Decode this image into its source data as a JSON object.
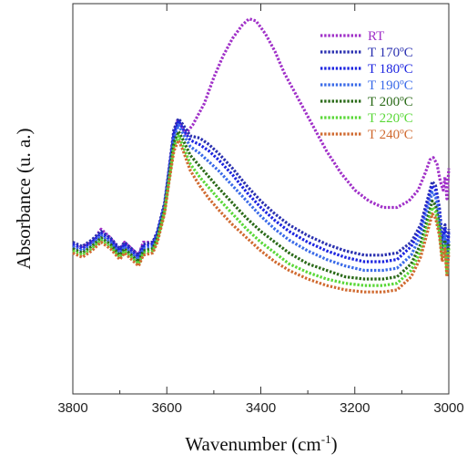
{
  "chart_data": {
    "type": "line",
    "title": "",
    "xlabel": "Wavenumber (cm",
    "xlabel_sup": "-1",
    "xlabel_close": ")",
    "ylabel": "Absorbance (u. a.)",
    "xlim": [
      3800,
      3000
    ],
    "x_reversed": true,
    "y_tick_labels": false,
    "legend_position": "top-right",
    "grid": false,
    "x_ticks": [
      3800,
      3600,
      3400,
      3200,
      3000
    ],
    "x_tick_labels": [
      "3800",
      "3600",
      "3400",
      "3200",
      "3000"
    ],
    "series": [
      {
        "name": "RT",
        "color": "#a030c8",
        "points": [
          [
            3800,
            0.54
          ],
          [
            3780,
            0.54
          ],
          [
            3760,
            0.55
          ],
          [
            3740,
            0.58
          ],
          [
            3720,
            0.56
          ],
          [
            3700,
            0.53
          ],
          [
            3690,
            0.55
          ],
          [
            3670,
            0.53
          ],
          [
            3660,
            0.52
          ],
          [
            3650,
            0.55
          ],
          [
            3630,
            0.55
          ],
          [
            3620,
            0.57
          ],
          [
            3605,
            0.63
          ],
          [
            3595,
            0.72
          ],
          [
            3585,
            0.8
          ],
          [
            3578,
            0.83
          ],
          [
            3570,
            0.82
          ],
          [
            3560,
            0.8
          ],
          [
            3545,
            0.82
          ],
          [
            3520,
            0.87
          ],
          [
            3500,
            0.93
          ],
          [
            3480,
            0.98
          ],
          [
            3460,
            1.02
          ],
          [
            3440,
            1.05
          ],
          [
            3425,
            1.065
          ],
          [
            3410,
            1.06
          ],
          [
            3390,
            1.03
          ],
          [
            3370,
            0.99
          ],
          [
            3350,
            0.94
          ],
          [
            3320,
            0.88
          ],
          [
            3290,
            0.82
          ],
          [
            3260,
            0.76
          ],
          [
            3230,
            0.71
          ],
          [
            3200,
            0.67
          ],
          [
            3170,
            0.645
          ],
          [
            3140,
            0.63
          ],
          [
            3110,
            0.63
          ],
          [
            3085,
            0.645
          ],
          [
            3065,
            0.67
          ],
          [
            3050,
            0.71
          ],
          [
            3040,
            0.74
          ],
          [
            3033,
            0.745
          ],
          [
            3025,
            0.73
          ],
          [
            3018,
            0.69
          ],
          [
            3012,
            0.67
          ],
          [
            3008,
            0.7
          ],
          [
            3004,
            0.65
          ],
          [
            3000,
            0.72
          ]
        ]
      },
      {
        "name": "T 170ºC",
        "color": "#2a30b0",
        "points": [
          [
            3800,
            0.55
          ],
          [
            3780,
            0.54
          ],
          [
            3760,
            0.555
          ],
          [
            3740,
            0.575
          ],
          [
            3720,
            0.56
          ],
          [
            3700,
            0.535
          ],
          [
            3690,
            0.55
          ],
          [
            3670,
            0.53
          ],
          [
            3660,
            0.52
          ],
          [
            3650,
            0.545
          ],
          [
            3630,
            0.55
          ],
          [
            3620,
            0.575
          ],
          [
            3605,
            0.64
          ],
          [
            3595,
            0.72
          ],
          [
            3585,
            0.81
          ],
          [
            3575,
            0.835
          ],
          [
            3565,
            0.82
          ],
          [
            3550,
            0.795
          ],
          [
            3530,
            0.79
          ],
          [
            3510,
            0.775
          ],
          [
            3490,
            0.755
          ],
          [
            3460,
            0.72
          ],
          [
            3430,
            0.68
          ],
          [
            3400,
            0.645
          ],
          [
            3370,
            0.615
          ],
          [
            3340,
            0.59
          ],
          [
            3300,
            0.565
          ],
          [
            3260,
            0.545
          ],
          [
            3220,
            0.53
          ],
          [
            3180,
            0.52
          ],
          [
            3140,
            0.52
          ],
          [
            3110,
            0.525
          ],
          [
            3080,
            0.55
          ],
          [
            3060,
            0.59
          ],
          [
            3045,
            0.65
          ],
          [
            3035,
            0.69
          ],
          [
            3028,
            0.68
          ],
          [
            3020,
            0.63
          ],
          [
            3014,
            0.56
          ],
          [
            3008,
            0.59
          ],
          [
            3004,
            0.52
          ],
          [
            3000,
            0.58
          ]
        ]
      },
      {
        "name": "T 180ºC",
        "color": "#1c24e0",
        "points": [
          [
            3800,
            0.545
          ],
          [
            3780,
            0.535
          ],
          [
            3760,
            0.55
          ],
          [
            3740,
            0.57
          ],
          [
            3720,
            0.555
          ],
          [
            3700,
            0.53
          ],
          [
            3690,
            0.545
          ],
          [
            3670,
            0.525
          ],
          [
            3660,
            0.515
          ],
          [
            3650,
            0.54
          ],
          [
            3630,
            0.545
          ],
          [
            3620,
            0.57
          ],
          [
            3605,
            0.635
          ],
          [
            3595,
            0.715
          ],
          [
            3585,
            0.8
          ],
          [
            3575,
            0.83
          ],
          [
            3565,
            0.81
          ],
          [
            3550,
            0.785
          ],
          [
            3530,
            0.775
          ],
          [
            3510,
            0.76
          ],
          [
            3490,
            0.74
          ],
          [
            3460,
            0.705
          ],
          [
            3430,
            0.665
          ],
          [
            3400,
            0.63
          ],
          [
            3370,
            0.6
          ],
          [
            3340,
            0.575
          ],
          [
            3300,
            0.55
          ],
          [
            3260,
            0.53
          ],
          [
            3220,
            0.515
          ],
          [
            3180,
            0.505
          ],
          [
            3140,
            0.505
          ],
          [
            3110,
            0.51
          ],
          [
            3080,
            0.54
          ],
          [
            3060,
            0.58
          ],
          [
            3045,
            0.64
          ],
          [
            3035,
            0.68
          ],
          [
            3028,
            0.67
          ],
          [
            3020,
            0.62
          ],
          [
            3014,
            0.55
          ],
          [
            3008,
            0.58
          ],
          [
            3004,
            0.51
          ],
          [
            3000,
            0.57
          ]
        ]
      },
      {
        "name": "T 190ºC",
        "color": "#3a6ae8",
        "points": [
          [
            3800,
            0.54
          ],
          [
            3780,
            0.53
          ],
          [
            3760,
            0.545
          ],
          [
            3740,
            0.565
          ],
          [
            3720,
            0.55
          ],
          [
            3700,
            0.525
          ],
          [
            3690,
            0.54
          ],
          [
            3670,
            0.52
          ],
          [
            3660,
            0.51
          ],
          [
            3650,
            0.535
          ],
          [
            3630,
            0.54
          ],
          [
            3620,
            0.565
          ],
          [
            3605,
            0.63
          ],
          [
            3595,
            0.71
          ],
          [
            3585,
            0.79
          ],
          [
            3575,
            0.82
          ],
          [
            3565,
            0.8
          ],
          [
            3550,
            0.77
          ],
          [
            3530,
            0.755
          ],
          [
            3510,
            0.735
          ],
          [
            3490,
            0.715
          ],
          [
            3460,
            0.68
          ],
          [
            3430,
            0.645
          ],
          [
            3400,
            0.61
          ],
          [
            3370,
            0.58
          ],
          [
            3340,
            0.555
          ],
          [
            3300,
            0.53
          ],
          [
            3260,
            0.51
          ],
          [
            3220,
            0.495
          ],
          [
            3180,
            0.485
          ],
          [
            3140,
            0.485
          ],
          [
            3110,
            0.49
          ],
          [
            3080,
            0.52
          ],
          [
            3060,
            0.565
          ],
          [
            3045,
            0.625
          ],
          [
            3035,
            0.665
          ],
          [
            3028,
            0.655
          ],
          [
            3020,
            0.605
          ],
          [
            3014,
            0.535
          ],
          [
            3008,
            0.565
          ],
          [
            3004,
            0.495
          ],
          [
            3000,
            0.555
          ]
        ]
      },
      {
        "name": "T 200ºC",
        "color": "#2a6a18",
        "points": [
          [
            3800,
            0.535
          ],
          [
            3780,
            0.525
          ],
          [
            3760,
            0.54
          ],
          [
            3740,
            0.56
          ],
          [
            3720,
            0.545
          ],
          [
            3700,
            0.52
          ],
          [
            3690,
            0.535
          ],
          [
            3670,
            0.515
          ],
          [
            3660,
            0.505
          ],
          [
            3650,
            0.53
          ],
          [
            3630,
            0.535
          ],
          [
            3620,
            0.56
          ],
          [
            3605,
            0.625
          ],
          [
            3595,
            0.7
          ],
          [
            3585,
            0.78
          ],
          [
            3575,
            0.805
          ],
          [
            3565,
            0.785
          ],
          [
            3550,
            0.75
          ],
          [
            3530,
            0.725
          ],
          [
            3510,
            0.7
          ],
          [
            3490,
            0.675
          ],
          [
            3460,
            0.64
          ],
          [
            3430,
            0.605
          ],
          [
            3400,
            0.575
          ],
          [
            3370,
            0.55
          ],
          [
            3340,
            0.525
          ],
          [
            3300,
            0.5
          ],
          [
            3260,
            0.485
          ],
          [
            3220,
            0.47
          ],
          [
            3180,
            0.465
          ],
          [
            3140,
            0.465
          ],
          [
            3110,
            0.47
          ],
          [
            3080,
            0.5
          ],
          [
            3060,
            0.545
          ],
          [
            3045,
            0.605
          ],
          [
            3035,
            0.645
          ],
          [
            3028,
            0.635
          ],
          [
            3020,
            0.59
          ],
          [
            3014,
            0.525
          ],
          [
            3008,
            0.555
          ],
          [
            3004,
            0.49
          ],
          [
            3000,
            0.545
          ]
        ]
      },
      {
        "name": "T 220ºC",
        "color": "#5ad838",
        "points": [
          [
            3800,
            0.53
          ],
          [
            3780,
            0.52
          ],
          [
            3760,
            0.535
          ],
          [
            3740,
            0.555
          ],
          [
            3720,
            0.54
          ],
          [
            3700,
            0.515
          ],
          [
            3690,
            0.53
          ],
          [
            3670,
            0.51
          ],
          [
            3660,
            0.5
          ],
          [
            3650,
            0.525
          ],
          [
            3630,
            0.53
          ],
          [
            3620,
            0.555
          ],
          [
            3605,
            0.62
          ],
          [
            3595,
            0.695
          ],
          [
            3585,
            0.77
          ],
          [
            3575,
            0.795
          ],
          [
            3565,
            0.77
          ],
          [
            3550,
            0.73
          ],
          [
            3530,
            0.7
          ],
          [
            3510,
            0.675
          ],
          [
            3490,
            0.65
          ],
          [
            3460,
            0.615
          ],
          [
            3430,
            0.58
          ],
          [
            3400,
            0.55
          ],
          [
            3370,
            0.525
          ],
          [
            3340,
            0.5
          ],
          [
            3300,
            0.48
          ],
          [
            3260,
            0.465
          ],
          [
            3220,
            0.455
          ],
          [
            3180,
            0.45
          ],
          [
            3140,
            0.45
          ],
          [
            3110,
            0.455
          ],
          [
            3080,
            0.485
          ],
          [
            3060,
            0.53
          ],
          [
            3045,
            0.59
          ],
          [
            3035,
            0.63
          ],
          [
            3028,
            0.62
          ],
          [
            3020,
            0.575
          ],
          [
            3014,
            0.515
          ],
          [
            3008,
            0.545
          ],
          [
            3004,
            0.48
          ],
          [
            3000,
            0.535
          ]
        ]
      },
      {
        "name": "T 240ºC",
        "color": "#d06a30",
        "points": [
          [
            3800,
            0.525
          ],
          [
            3780,
            0.515
          ],
          [
            3760,
            0.53
          ],
          [
            3740,
            0.55
          ],
          [
            3720,
            0.535
          ],
          [
            3700,
            0.51
          ],
          [
            3690,
            0.525
          ],
          [
            3670,
            0.505
          ],
          [
            3660,
            0.495
          ],
          [
            3650,
            0.52
          ],
          [
            3630,
            0.525
          ],
          [
            3620,
            0.55
          ],
          [
            3605,
            0.615
          ],
          [
            3595,
            0.69
          ],
          [
            3585,
            0.76
          ],
          [
            3575,
            0.785
          ],
          [
            3565,
            0.76
          ],
          [
            3550,
            0.715
          ],
          [
            3530,
            0.68
          ],
          [
            3510,
            0.65
          ],
          [
            3490,
            0.625
          ],
          [
            3460,
            0.59
          ],
          [
            3430,
            0.56
          ],
          [
            3400,
            0.53
          ],
          [
            3370,
            0.505
          ],
          [
            3340,
            0.485
          ],
          [
            3300,
            0.465
          ],
          [
            3260,
            0.45
          ],
          [
            3220,
            0.44
          ],
          [
            3180,
            0.435
          ],
          [
            3140,
            0.435
          ],
          [
            3110,
            0.44
          ],
          [
            3080,
            0.47
          ],
          [
            3060,
            0.515
          ],
          [
            3045,
            0.575
          ],
          [
            3035,
            0.615
          ],
          [
            3028,
            0.605
          ],
          [
            3020,
            0.565
          ],
          [
            3014,
            0.505
          ],
          [
            3008,
            0.535
          ],
          [
            3004,
            0.47
          ],
          [
            3000,
            0.525
          ]
        ]
      }
    ]
  }
}
